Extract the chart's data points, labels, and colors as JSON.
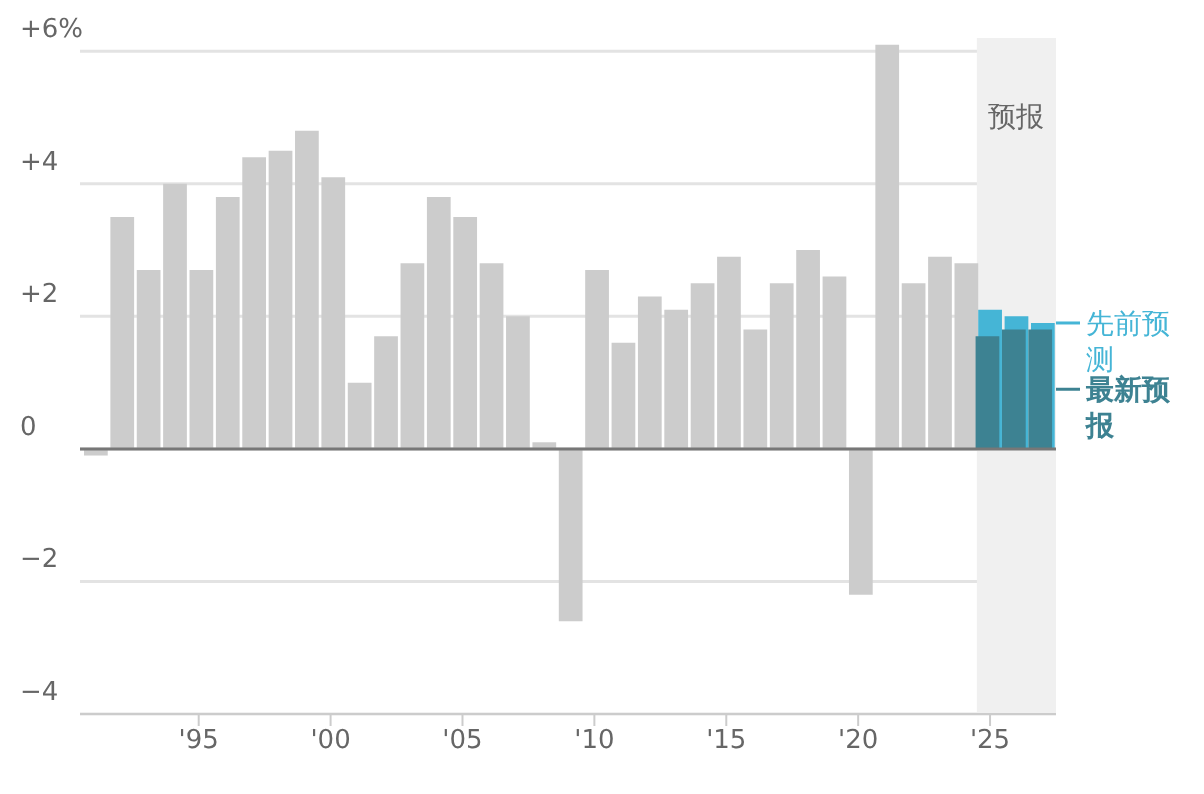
{
  "chart_data": {
    "type": "bar",
    "x": [
      1991,
      1992,
      1993,
      1994,
      1995,
      1996,
      1997,
      1998,
      1999,
      2000,
      2001,
      2002,
      2003,
      2004,
      2005,
      2006,
      2007,
      2008,
      2009,
      2010,
      2011,
      2012,
      2013,
      2014,
      2015,
      2016,
      2017,
      2018,
      2019,
      2020,
      2021,
      2022,
      2023,
      2024,
      2025,
      2026,
      2027
    ],
    "series": [
      {
        "color": "#cccccc",
        "values": [
          -0.1,
          3.5,
          2.7,
          4.0,
          2.7,
          3.8,
          4.4,
          4.5,
          4.8,
          4.1,
          1.0,
          1.7,
          2.8,
          3.8,
          3.5,
          2.8,
          2.0,
          0.1,
          -2.6,
          2.7,
          1.6,
          2.3,
          2.1,
          2.5,
          2.9,
          1.8,
          2.5,
          3.0,
          2.6,
          -2.2,
          6.1,
          2.5,
          2.9,
          2.8,
          null,
          null,
          null
        ]
      },
      {
        "name": "先前预测",
        "color": "#45b5d6",
        "values": [
          null,
          null,
          null,
          null,
          null,
          null,
          null,
          null,
          null,
          null,
          null,
          null,
          null,
          null,
          null,
          null,
          null,
          null,
          null,
          null,
          null,
          null,
          null,
          null,
          null,
          null,
          null,
          null,
          null,
          null,
          null,
          null,
          null,
          null,
          2.1,
          2.0,
          1.9
        ]
      },
      {
        "name": "最新预报",
        "color": "#3d8292",
        "values": [
          null,
          null,
          null,
          null,
          null,
          null,
          null,
          null,
          null,
          null,
          null,
          null,
          null,
          null,
          null,
          null,
          null,
          null,
          null,
          null,
          null,
          null,
          null,
          null,
          null,
          null,
          null,
          null,
          null,
          null,
          null,
          null,
          null,
          null,
          1.7,
          1.8,
          1.8
        ]
      }
    ],
    "xlim": [
      1990.5,
      2027.5
    ],
    "xticks": [
      {
        "value": 1995,
        "label": "'95"
      },
      {
        "value": 2000,
        "label": "'00"
      },
      {
        "value": 2005,
        "label": "'05"
      },
      {
        "value": 2010,
        "label": "'10"
      },
      {
        "value": 2015,
        "label": "'15"
      },
      {
        "value": 2020,
        "label": "'20"
      },
      {
        "value": 2025,
        "label": "'25"
      }
    ],
    "ylim": [
      -4,
      6.2
    ],
    "yticks": [
      {
        "value": 6,
        "label": "+6%"
      },
      {
        "value": 4,
        "label": "+4"
      },
      {
        "value": 2,
        "label": "+2"
      },
      0,
      {
        "value": -2,
        "label": "−2"
      },
      {
        "value": -4,
        "label": "−4"
      }
    ],
    "grid": "y",
    "legend": "right",
    "ref_lines": [
      {
        "axis": "y",
        "value": 0,
        "color": "#777777"
      }
    ],
    "bands": [
      {
        "axis": "x",
        "from": 2024.5,
        "to": 2027.5,
        "label": "预报",
        "color": "#f0f0f0"
      }
    ]
  }
}
